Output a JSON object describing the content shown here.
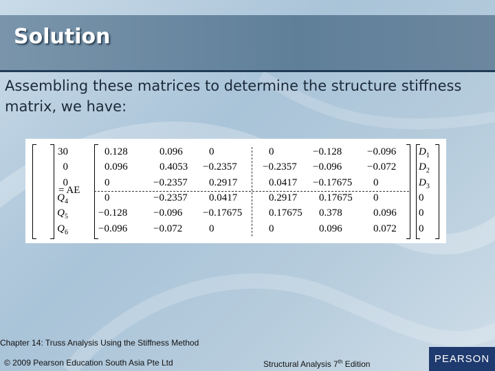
{
  "slide": {
    "title": "Solution",
    "body": "Assembling these matrices to determine the structure stiffness matrix, we have:"
  },
  "equation": {
    "load_vector": [
      "30",
      "0",
      "0",
      "Q4",
      "Q5",
      "Q6"
    ],
    "equals": "= AE",
    "stiffness_matrix": [
      [
        "0.128",
        "0.096",
        "0",
        "0",
        "−0.128",
        "−0.096"
      ],
      [
        "0.096",
        "0.4053",
        "−0.2357",
        "−0.2357",
        "−0.096",
        "−0.072"
      ],
      [
        "0",
        "−0.2357",
        "0.2917",
        "0.0417",
        "−0.17675",
        "0"
      ],
      [
        "0",
        "−0.2357",
        "0.0417",
        "0.2917",
        "0.17675",
        "0"
      ],
      [
        "−0.128",
        "−0.096",
        "−0.17675",
        "0.17675",
        "0.378",
        "0.096"
      ],
      [
        "−0.096",
        "−0.072",
        "0",
        "0",
        "0.096",
        "0.072"
      ]
    ],
    "displacement_vector": [
      "D1",
      "D2",
      "D3",
      "0",
      "0",
      "0"
    ]
  },
  "footer": {
    "chapter": "Chapter 14: Truss Analysis Using the Stiffness Method",
    "copyright": "© 2009 Pearson Education South Asia Pte Ltd",
    "book_prefix": "Structural Analysis 7",
    "book_sup": "th",
    "book_suffix": " Edition",
    "logo": "PEARSON"
  },
  "colors": {
    "header": "#6c879e",
    "logo_bg": "#1e3a6e"
  }
}
